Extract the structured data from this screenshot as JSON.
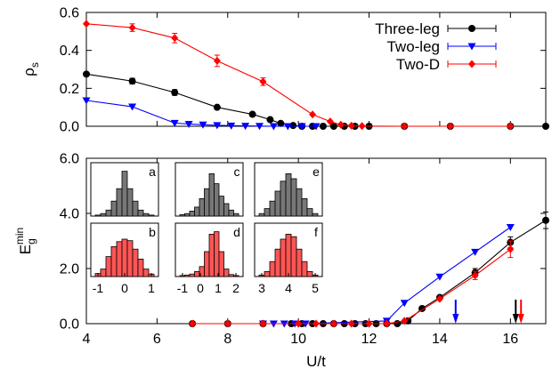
{
  "chart_data": [
    {
      "type": "line",
      "ylabel": "ρ",
      "ylabel_sub": "s",
      "xlim": [
        4,
        17
      ],
      "ylim": [
        0,
        0.6
      ],
      "yticks": [
        "0.0",
        "0.2",
        "0.4",
        "0.6"
      ],
      "legend": "top-right",
      "series": [
        {
          "name": "Three-leg",
          "color": "#000000",
          "marker": "circle",
          "x": [
            4,
            5.3,
            6.5,
            7.7,
            8.7,
            9.2,
            9.5,
            9.85,
            10.1,
            10.4,
            10.7,
            11.0,
            11.3,
            11.6,
            12.0,
            13.0,
            14.3,
            16.0,
            17.0
          ],
          "y": [
            0.275,
            0.238,
            0.178,
            0.1,
            0.063,
            0.035,
            0.015,
            0.004,
            0,
            0,
            0,
            0,
            0,
            0,
            0,
            0,
            0,
            0,
            0
          ],
          "err": [
            0,
            0.015,
            0.015,
            0,
            0,
            0,
            0,
            0,
            0,
            0,
            0,
            0,
            0,
            0,
            0,
            0,
            0,
            0,
            0
          ]
        },
        {
          "name": "Two-leg",
          "color": "#0000ff",
          "marker": "triangle-down",
          "x": [
            4,
            5.3,
            6.5,
            6.9,
            7.3,
            7.7,
            8.1,
            8.5,
            8.9,
            9.3,
            9.7,
            10.1,
            10.5
          ],
          "y": [
            0.136,
            0.103,
            0.017,
            0.012,
            0.008,
            0.005,
            0.003,
            0.002,
            0.001,
            0,
            0,
            0,
            0
          ],
          "err": [
            0,
            0,
            0,
            0,
            0,
            0,
            0,
            0,
            0,
            0,
            0,
            0,
            0
          ]
        },
        {
          "name": "Two-D",
          "color": "#ff0000",
          "marker": "diamond",
          "x": [
            4,
            5.3,
            6.5,
            7.7,
            9.0,
            10.4,
            10.9,
            11.2,
            11.5,
            11.8,
            13.0,
            14.3,
            16.0
          ],
          "y": [
            0.54,
            0.52,
            0.465,
            0.345,
            0.235,
            0.062,
            0.025,
            0.008,
            0.003,
            0.001,
            0,
            0,
            0
          ],
          "err": [
            0,
            0.02,
            0.025,
            0.03,
            0.02,
            0,
            0,
            0,
            0,
            0,
            0,
            0,
            0
          ]
        }
      ]
    },
    {
      "type": "line",
      "xlabel": "U/t",
      "ylabel": "E",
      "ylabel_sub": "g",
      "ylabel_sup": "min",
      "xlim": [
        4,
        17
      ],
      "ylim": [
        0,
        6
      ],
      "xticks": [
        "4",
        "6",
        "8",
        "10",
        "12",
        "14",
        "16"
      ],
      "yticks": [
        "0.0",
        "2.0",
        "4.0",
        "6.0"
      ],
      "series": [
        {
          "name": "Three-leg",
          "color": "#000000",
          "marker": "circle",
          "x": [
            7.0,
            8.0,
            9.0,
            9.8,
            10.1,
            10.4,
            10.7,
            11.0,
            11.3,
            11.6,
            11.9,
            12.2,
            12.5,
            12.8,
            13.1,
            13.5,
            14.0,
            15.0,
            16.0,
            17.0
          ],
          "y": [
            0,
            0,
            0,
            0,
            0,
            0,
            0,
            0,
            0,
            0,
            0,
            0,
            0,
            0,
            0.1,
            0.55,
            0.95,
            1.85,
            2.95,
            3.75
          ],
          "err": [
            0,
            0,
            0,
            0,
            0,
            0,
            0,
            0,
            0,
            0,
            0,
            0,
            0,
            0,
            0,
            0,
            0,
            0.15,
            0.2,
            0.3
          ]
        },
        {
          "name": "Two-leg",
          "color": "#0000ff",
          "marker": "triangle-down",
          "x": [
            9.0,
            9.3,
            9.6,
            9.9,
            10.2,
            12.5,
            13.0,
            14.0,
            15.0,
            16.0
          ],
          "y": [
            0,
            0,
            0,
            0,
            0,
            0.1,
            0.75,
            1.7,
            2.6,
            3.5
          ],
          "err": [
            0,
            0,
            0,
            0,
            0,
            0,
            0,
            0,
            0,
            0
          ]
        },
        {
          "name": "Two-D",
          "color": "#ff0000",
          "marker": "diamond",
          "x": [
            7.0,
            8.0,
            9.0,
            10.0,
            10.5,
            11.0,
            11.5,
            12.0,
            12.5,
            13.0,
            14.0,
            15.0,
            16.0
          ],
          "y": [
            0,
            0,
            0,
            0,
            0,
            0,
            0,
            0,
            0,
            0.1,
            0.9,
            1.75,
            2.7
          ],
          "err": [
            0,
            0,
            0,
            0,
            0,
            0,
            0,
            0,
            0,
            0,
            0,
            0.15,
            0.3
          ]
        }
      ],
      "arrows": [
        {
          "x": 14.45,
          "color": "#0000ff"
        },
        {
          "x": 16.15,
          "color": "#000000"
        },
        {
          "x": 16.3,
          "color": "#ff0000"
        }
      ],
      "insets": [
        {
          "label": "a",
          "color": "#777777",
          "values": [
            0.02,
            0.05,
            0.12,
            0.3,
            0.55,
            0.9,
            0.55,
            0.3,
            0.12,
            0.05,
            0.02
          ]
        },
        {
          "label": "c",
          "color": "#777777",
          "values": [
            0.03,
            0.05,
            0.1,
            0.18,
            0.35,
            0.55,
            0.85,
            0.65,
            0.4,
            0.25,
            0.12,
            0.05
          ]
        },
        {
          "label": "e",
          "color": "#777777",
          "values": [
            0.05,
            0.15,
            0.3,
            0.5,
            0.7,
            0.85,
            0.75,
            0.55,
            0.35,
            0.15,
            0.05
          ]
        },
        {
          "label": "b",
          "color": "#ff5555",
          "values": [
            0.06,
            0.15,
            0.4,
            0.6,
            0.7,
            0.75,
            0.72,
            0.55,
            0.35,
            0.15,
            0.05
          ]
        },
        {
          "label": "d",
          "color": "#ff5555",
          "values": [
            0.02,
            0.03,
            0.05,
            0.1,
            0.2,
            0.5,
            0.85,
            0.9,
            0.5,
            0.15,
            0.04,
            0.02
          ]
        },
        {
          "label": "f",
          "color": "#ff5555",
          "values": [
            0.03,
            0.1,
            0.3,
            0.55,
            0.75,
            0.85,
            0.8,
            0.55,
            0.3,
            0.1,
            0.03
          ]
        }
      ],
      "inset_xticks": [
        [
          "-1",
          "0",
          "1"
        ],
        [
          "-1",
          "0",
          "1",
          "2"
        ],
        [
          "3",
          "4",
          "5"
        ]
      ]
    }
  ]
}
